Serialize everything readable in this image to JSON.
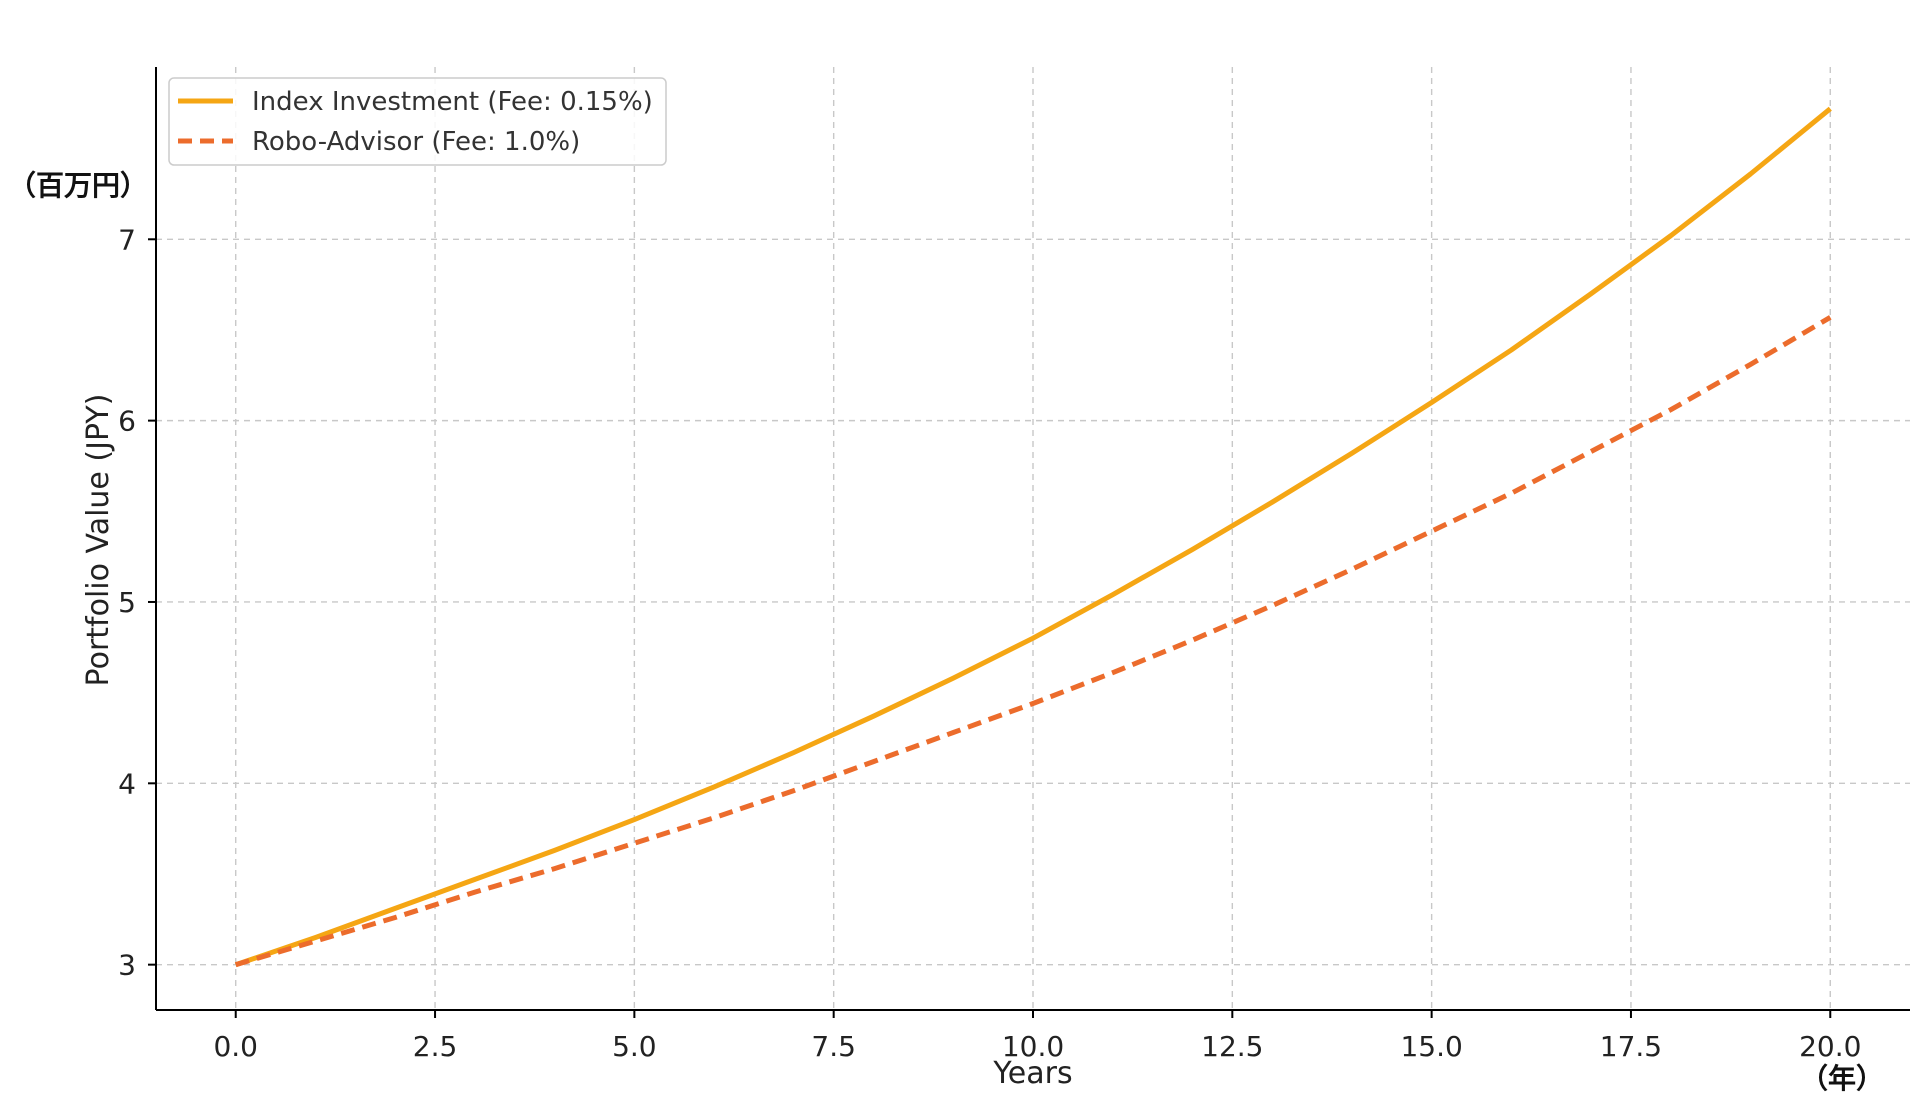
{
  "chart_data": {
    "type": "line",
    "title": "",
    "xlabel": "Years",
    "ylabel": "Portfolio Value (JPY)",
    "x_unit": "（年）",
    "y_unit": "（百万円）",
    "xlim": [
      -1,
      21
    ],
    "ylim": [
      2.75,
      7.95
    ],
    "xticks": [
      "0.0",
      "2.5",
      "5.0",
      "7.5",
      "10.0",
      "12.5",
      "15.0",
      "17.5",
      "20.0"
    ],
    "xtick_values": [
      0,
      2.5,
      5,
      7.5,
      10,
      12.5,
      15,
      17.5,
      20
    ],
    "yticks": [
      "3",
      "4",
      "5",
      "6",
      "7"
    ],
    "ytick_values": [
      3,
      4,
      5,
      6,
      7
    ],
    "grid": true,
    "legend_position": "top-left",
    "x": [
      0,
      1,
      2,
      3,
      4,
      5,
      6,
      7,
      8,
      9,
      10,
      11,
      12,
      13,
      14,
      15,
      16,
      17,
      18,
      19,
      20
    ],
    "series": [
      {
        "name": "Index Investment (Fee: 0.15%)",
        "color": "#f5a614",
        "style": "solid",
        "values": [
          3.0,
          3.15,
          3.31,
          3.47,
          3.63,
          3.8,
          3.98,
          4.17,
          4.37,
          4.58,
          4.8,
          5.04,
          5.29,
          5.55,
          5.82,
          6.1,
          6.39,
          6.7,
          7.02,
          7.36,
          7.72
        ]
      },
      {
        "name": "Robo-Advisor (Fee: 1.0%)",
        "color": "#ec6c2c",
        "style": "dashed",
        "values": [
          3.0,
          3.13,
          3.26,
          3.4,
          3.53,
          3.67,
          3.81,
          3.96,
          4.12,
          4.28,
          4.44,
          4.61,
          4.79,
          4.98,
          5.18,
          5.39,
          5.6,
          5.83,
          6.06,
          6.31,
          6.57
        ]
      }
    ]
  }
}
